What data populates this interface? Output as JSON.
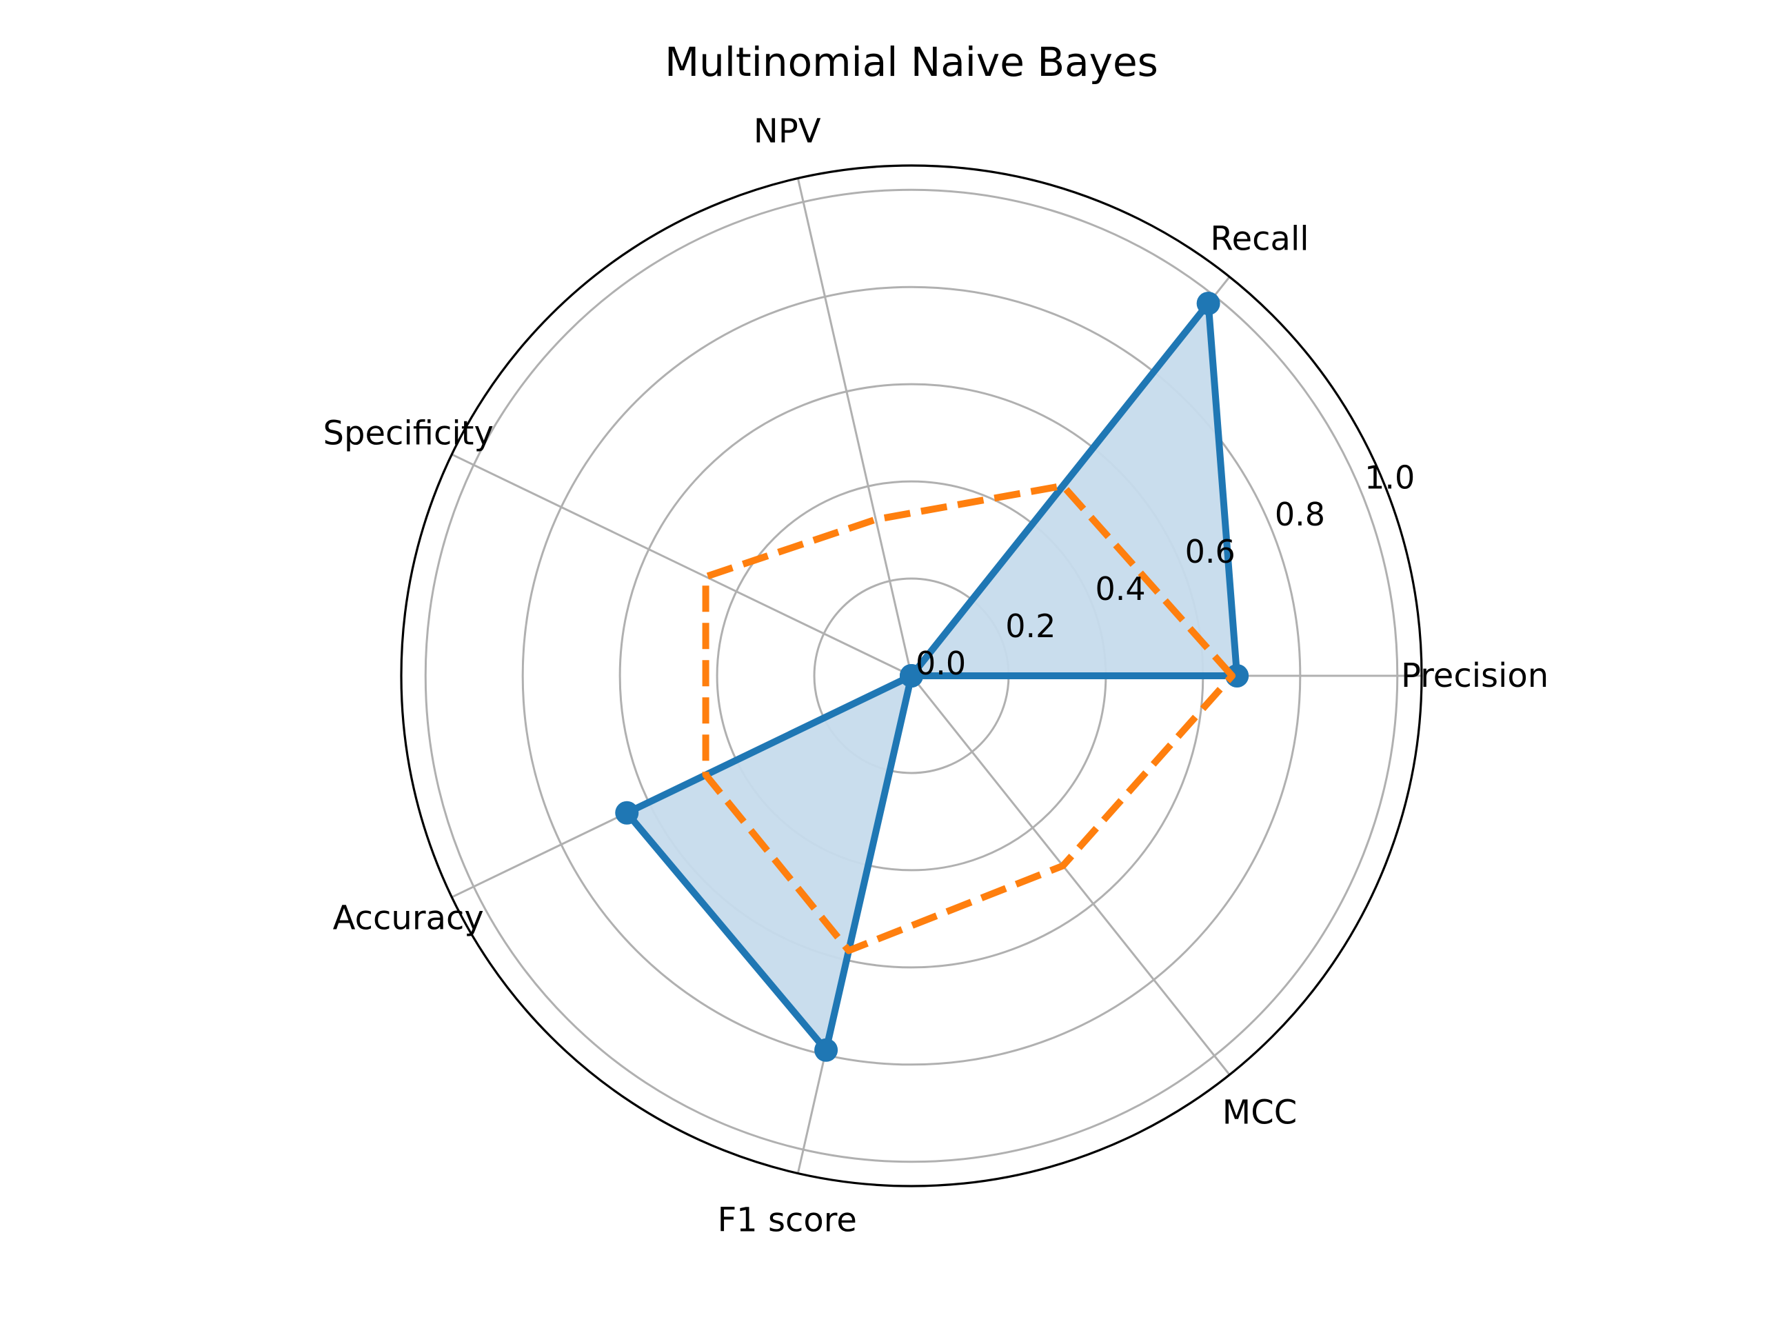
{
  "chart_data": {
    "type": "radar",
    "title": "Multinomial Naive Bayes",
    "categories": [
      "Precision",
      "Recall",
      "NPV",
      "Specificity",
      "Accuracy",
      "F1 score",
      "MCC"
    ],
    "radial_ticks": [
      "0.0",
      "0.2",
      "0.4",
      "0.6",
      "0.8",
      "1.0"
    ],
    "rlim": [
      0,
      1.05
    ],
    "grid": true,
    "series": [
      {
        "values": [
          0.67,
          0.98,
          0.0,
          0.0,
          0.65,
          0.79,
          0.0
        ],
        "color": "#1f77b4",
        "line_style": "solid",
        "markers": true,
        "fill": true,
        "fill_color": "#c6dbec"
      },
      {
        "values": [
          0.66,
          0.5,
          0.33,
          0.47,
          0.47,
          0.58,
          0.5
        ],
        "color": "#ff7f0e",
        "line_style": "dashed",
        "markers": false,
        "fill": false
      }
    ]
  }
}
